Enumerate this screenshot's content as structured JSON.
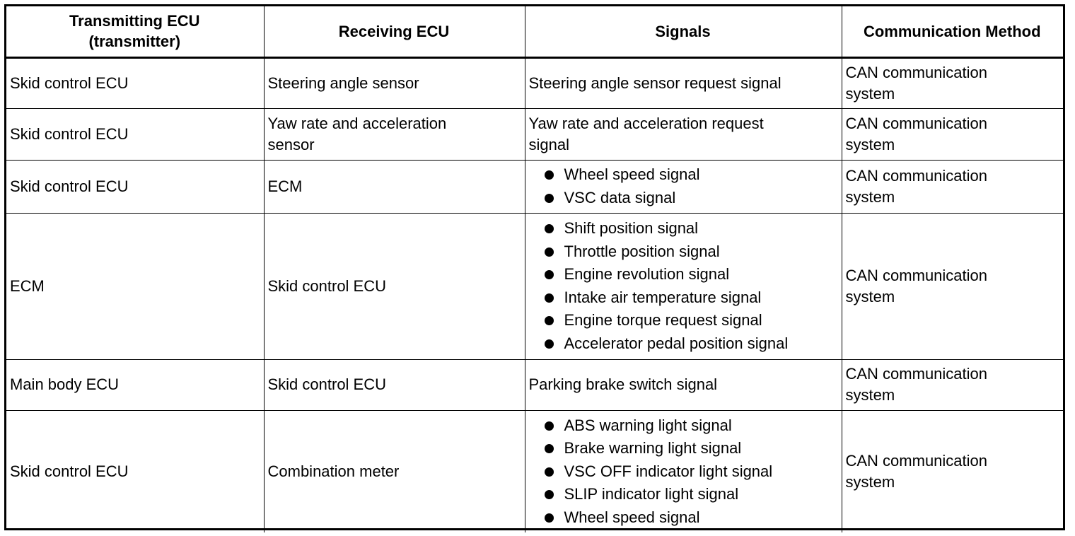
{
  "table": {
    "headers": [
      "Transmitting ECU\n(transmitter)",
      "Receiving ECU",
      "Signals",
      "Communication Method"
    ],
    "header_transmitting_line1": "Transmitting ECU",
    "header_transmitting_line2": "(transmitter)",
    "header_receiving": "Receiving ECU",
    "header_signals": "Signals",
    "header_method": "Communication Method",
    "rows": [
      {
        "transmitter": "Skid control ECU",
        "receiver": "Steering angle sensor",
        "signal_text": "Steering angle sensor request signal",
        "method": "CAN communication system"
      },
      {
        "transmitter": "Skid control ECU",
        "receiver": "Yaw rate and acceleration sensor",
        "signal_text": "Yaw rate and acceleration request signal",
        "method": "CAN communication system"
      },
      {
        "transmitter": "Skid control ECU",
        "receiver": "ECM",
        "signals": [
          "Wheel speed signal",
          "VSC data signal"
        ],
        "method": "CAN communication system"
      },
      {
        "transmitter": "ECM",
        "receiver": "Skid control ECU",
        "signals": [
          "Shift position signal",
          "Throttle position signal",
          "Engine revolution signal",
          "Intake air temperature signal",
          "Engine torque request signal",
          "Accelerator pedal position signal"
        ],
        "method": "CAN communication system"
      },
      {
        "transmitter": "Main body ECU",
        "receiver": "Skid control ECU",
        "signal_text": "Parking brake switch signal",
        "method": "CAN communication system"
      },
      {
        "transmitter": "Skid control ECU",
        "receiver": "Combination meter",
        "signals": [
          "ABS warning light signal",
          "Brake warning light signal",
          "VSC OFF indicator light signal",
          "SLIP indicator light signal",
          "Wheel speed signal"
        ],
        "method": "CAN communication system"
      }
    ]
  }
}
